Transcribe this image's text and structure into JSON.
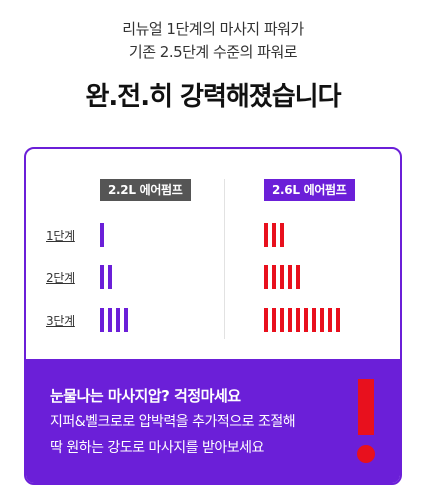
{
  "intro": {
    "line1": "리뉴얼 1단계의 마사지 파워가",
    "line2": "기존 2.5단계 수준의 파워로"
  },
  "headline": "완.전.히 강력해졌습니다",
  "comparison": {
    "old_pump": {
      "label": "2.2L 에어펌프",
      "bar_counts": [
        1,
        2,
        4
      ]
    },
    "new_pump": {
      "label": "2.6L 에어펌프",
      "bar_counts": [
        3,
        5,
        10
      ]
    },
    "levels": [
      "1단계",
      "2단계",
      "3단계"
    ]
  },
  "notice": {
    "title": "눈물나는 마사지압? 걱정마세요",
    "line1": "지퍼&벨크로로 압박력을 추가적으로 조절해",
    "line2": "딱 원하는 강도로 마사지를 받아보세요"
  },
  "colors": {
    "accent": "#6b1fd8",
    "alert": "#e8101d",
    "old_badge": "#555555"
  }
}
